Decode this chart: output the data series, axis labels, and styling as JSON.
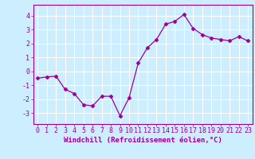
{
  "x": [
    0,
    1,
    2,
    3,
    4,
    5,
    6,
    7,
    8,
    9,
    10,
    11,
    12,
    13,
    14,
    15,
    16,
    17,
    18,
    19,
    20,
    21,
    22,
    23
  ],
  "y": [
    -0.5,
    -0.4,
    -0.35,
    -1.3,
    -1.6,
    -2.4,
    -2.5,
    -1.8,
    -1.8,
    -3.2,
    -1.9,
    0.6,
    1.7,
    2.3,
    3.4,
    3.6,
    4.1,
    3.1,
    2.65,
    2.4,
    2.3,
    2.2,
    2.5,
    2.2
  ],
  "line_color": "#990099",
  "marker": "D",
  "marker_size": 2.5,
  "bg_color": "#cceeff",
  "grid_color": "#ffffff",
  "xlabel": "Windchill (Refroidissement éolien,°C)",
  "ylabel_ticks": [
    -3,
    -2,
    -1,
    0,
    1,
    2,
    3,
    4
  ],
  "xlim": [
    -0.5,
    23.5
  ],
  "ylim": [
    -3.8,
    4.8
  ],
  "xtick_labels": [
    "0",
    "1",
    "2",
    "3",
    "4",
    "5",
    "6",
    "7",
    "8",
    "9",
    "10",
    "11",
    "12",
    "13",
    "14",
    "15",
    "16",
    "17",
    "18",
    "19",
    "20",
    "21",
    "22",
    "23"
  ],
  "axis_label_color": "#990099",
  "tick_color": "#990099",
  "tick_fontsize": 6,
  "xlabel_fontsize": 6.5
}
